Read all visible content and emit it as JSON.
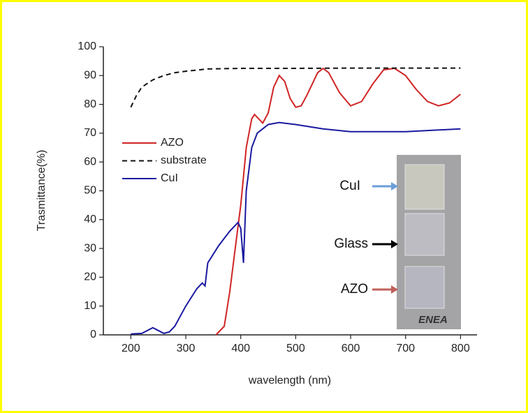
{
  "chart_data": {
    "type": "line",
    "x_label": "wavelength (nm)",
    "y_label": "Trasmittance(%)",
    "xlim": [
      150,
      830
    ],
    "ylim": [
      0,
      100
    ],
    "xticks": [
      200,
      300,
      400,
      500,
      600,
      700,
      800
    ],
    "yticks": [
      0,
      10,
      20,
      30,
      40,
      50,
      60,
      70,
      80,
      90,
      100
    ],
    "legend": "upper-left",
    "series": [
      {
        "name": "AZO",
        "color": "#d02424",
        "dash": "solid",
        "x": [
          355,
          370,
          380,
          390,
          400,
          410,
          420,
          425,
          440,
          450,
          460,
          470,
          480,
          490,
          500,
          510,
          520,
          540,
          550,
          560,
          580,
          600,
          620,
          640,
          660,
          680,
          700,
          720,
          740,
          760,
          780,
          800
        ],
        "values": [
          0,
          3,
          15,
          30,
          45,
          65,
          75,
          76.5,
          73.5,
          77,
          86,
          90,
          88,
          82,
          79,
          79.5,
          83,
          91,
          92.5,
          91,
          84,
          79.5,
          81,
          87,
          92,
          92.5,
          90,
          85,
          81,
          79.5,
          80.5,
          83.5
        ]
      },
      {
        "name": "substrate",
        "color": "#111111",
        "dash": "dashed",
        "x": [
          200,
          210,
          220,
          240,
          260,
          280,
          300,
          340,
          400,
          500,
          600,
          800
        ],
        "values": [
          79,
          83,
          86,
          88.5,
          90,
          91,
          91.5,
          92.3,
          92.5,
          92.5,
          92.6,
          92.6
        ]
      },
      {
        "name": "CuI",
        "color": "#1a1aa0",
        "dash": "solid",
        "x": [
          200,
          220,
          240,
          250,
          260,
          270,
          280,
          300,
          320,
          330,
          335,
          340,
          360,
          380,
          395,
          400,
          405,
          410,
          420,
          430,
          450,
          470,
          500,
          550,
          600,
          700,
          800
        ],
        "values": [
          0.3,
          0.5,
          2.5,
          1.5,
          0.5,
          1,
          3,
          10,
          16,
          18,
          17,
          25,
          31,
          36,
          39,
          37,
          25,
          50,
          65,
          70,
          73,
          73.7,
          73,
          71.5,
          70.5,
          70.5,
          71.5
        ]
      }
    ]
  },
  "inset": {
    "labels": [
      "CuI",
      "Glass",
      "AZO"
    ],
    "logo": "ENEA"
  }
}
